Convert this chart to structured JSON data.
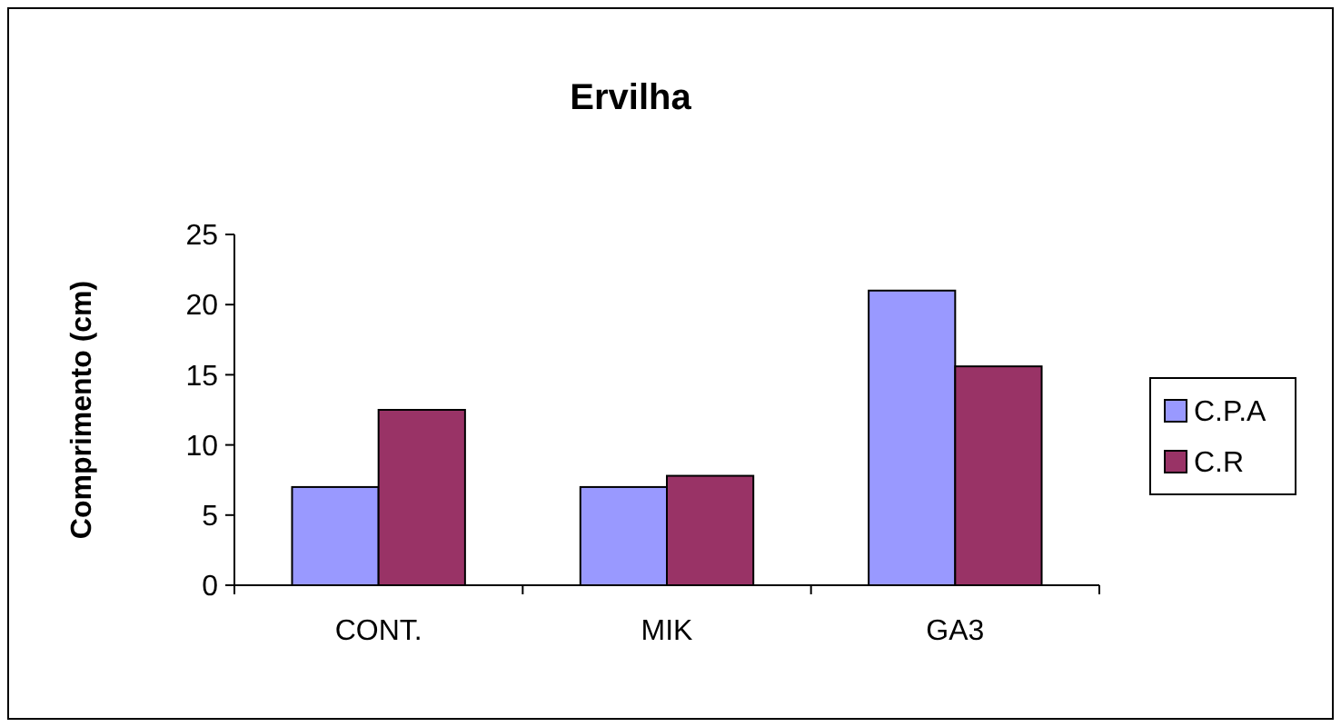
{
  "chart_data": {
    "type": "bar",
    "title": "Ervilha",
    "ylabel": "Comprimento (cm)",
    "categories": [
      "CONT.",
      "MIK",
      "GA3"
    ],
    "series": [
      {
        "name": "C.P.A",
        "color": "#9999ff",
        "values": [
          7,
          7,
          21
        ]
      },
      {
        "name": "C.R",
        "color": "#993366",
        "values": [
          12.5,
          7.8,
          15.6
        ]
      }
    ],
    "ylim": [
      0,
      25
    ],
    "yticks": [
      0,
      5,
      10,
      15,
      20,
      25
    ],
    "grid": false,
    "legend": "right"
  }
}
